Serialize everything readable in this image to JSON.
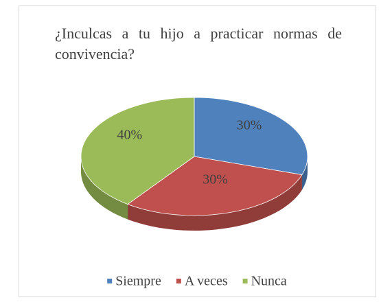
{
  "chart_data": {
    "type": "pie3d",
    "title": "¿Inculcas a tu hijo a practicar normas de convivencia?",
    "categories": [
      "Siempre",
      "A veces",
      "Nunca"
    ],
    "values": [
      30,
      30,
      40
    ],
    "value_labels": [
      "30%",
      "30%",
      "40%"
    ],
    "colors": [
      "#4f81bd",
      "#c0504d",
      "#9bbb59"
    ],
    "legend": "bottom"
  }
}
